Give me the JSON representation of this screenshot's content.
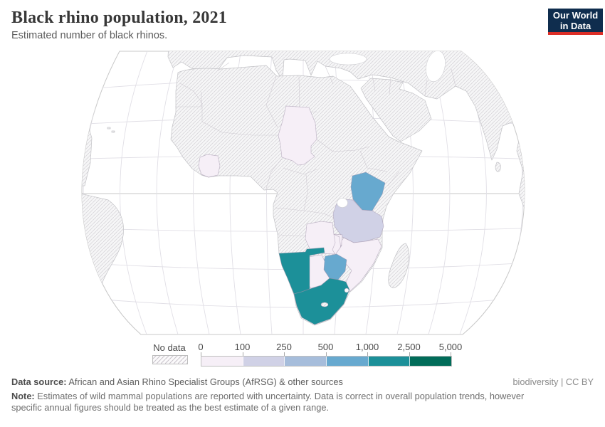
{
  "header": {
    "title": "Black rhino population, 2021",
    "subtitle": "Estimated number of black rhinos.",
    "logo_line1": "Our World",
    "logo_line2": "in Data",
    "logo_bg": "#0f2d4e",
    "logo_accent": "#dc2e27"
  },
  "legend": {
    "no_data_label": "No data",
    "tick_labels": [
      "0",
      "100",
      "250",
      "500",
      "1,000",
      "2,500",
      "5,000"
    ],
    "bin_colors": [
      "#f6eff7",
      "#d0d1e6",
      "#a6bddb",
      "#67a9cf",
      "#1c9099",
      "#016c59"
    ]
  },
  "map": {
    "country_colors": {
      "Chad": "#f6eff7",
      "CoteDIvoire": "#f6eff7",
      "Kenya": "#67a9cf",
      "Tanzania": "#d0d1e6",
      "Zambia": "#f6eff7",
      "Malawi": "#f6eff7",
      "Mozambique": "#f6eff7",
      "Botswana": "#f6eff7",
      "Zimbabwe": "#67a9cf",
      "Namibia": "#1c9099",
      "SouthAfrica": "#1c9099"
    }
  },
  "chart_data": {
    "type": "choropleth",
    "title": "Black rhino population, 2021",
    "subtitle": "Estimated number of black rhinos.",
    "legend_bins": [
      "0-100",
      "100-250",
      "250-500",
      "500-1,000",
      "1,000-2,500",
      "2,500-5,000"
    ],
    "legend_bin_colors": [
      "#f6eff7",
      "#d0d1e6",
      "#a6bddb",
      "#67a9cf",
      "#1c9099",
      "#016c59"
    ],
    "no_data_style": "hatched",
    "countries": [
      {
        "name": "Chad",
        "bin": "0-100"
      },
      {
        "name": "Côte d'Ivoire",
        "bin": "0-100"
      },
      {
        "name": "Kenya",
        "bin": "500-1,000"
      },
      {
        "name": "Tanzania",
        "bin": "100-250"
      },
      {
        "name": "Zambia",
        "bin": "0-100"
      },
      {
        "name": "Malawi",
        "bin": "0-100"
      },
      {
        "name": "Mozambique",
        "bin": "0-100"
      },
      {
        "name": "Botswana",
        "bin": "0-100"
      },
      {
        "name": "Zimbabwe",
        "bin": "500-1,000"
      },
      {
        "name": "Namibia",
        "bin": "1,000-2,500"
      },
      {
        "name": "South Africa",
        "bin": "1,000-2,500"
      },
      {
        "name": "All other countries shown",
        "bin": "No data"
      }
    ]
  },
  "footer": {
    "datasource_label": "Data source:",
    "datasource_text": " African and Asian Rhino Specialist Groups (AfRSG) & other sources",
    "attribution": "biodiversity | CC BY",
    "note_label": "Note:",
    "note_text": " Estimates of wild mammal populations are reported with uncertainty. Data is correct in overall population trends, however specific annual figures should be treated as the best estimate of a given range."
  }
}
